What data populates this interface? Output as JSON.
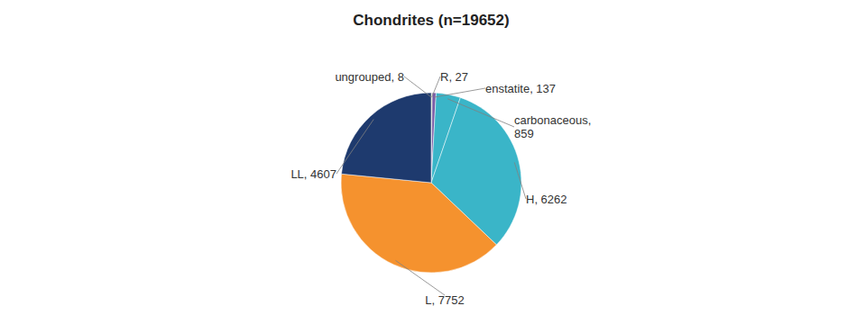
{
  "chart_data": {
    "type": "pie",
    "title": "Chondrites (n=19652)",
    "categories": [
      "ungrouped",
      "R",
      "enstatite",
      "carbonaceous",
      "H",
      "L",
      "LL"
    ],
    "values": [
      8,
      27,
      137,
      859,
      6262,
      7752,
      4607
    ],
    "colors": [
      "#666666",
      "#8db050",
      "#7b5ea7",
      "#3ab5c8",
      "#3ab5c8",
      "#f5922e",
      "#1e3a6e"
    ],
    "value_labels": [
      "ungrouped, 8",
      "R, 27",
      "enstatite, 137",
      "carbonaceous,\n859",
      "H, 6262",
      "L, 7752",
      "LL, 4607"
    ]
  }
}
